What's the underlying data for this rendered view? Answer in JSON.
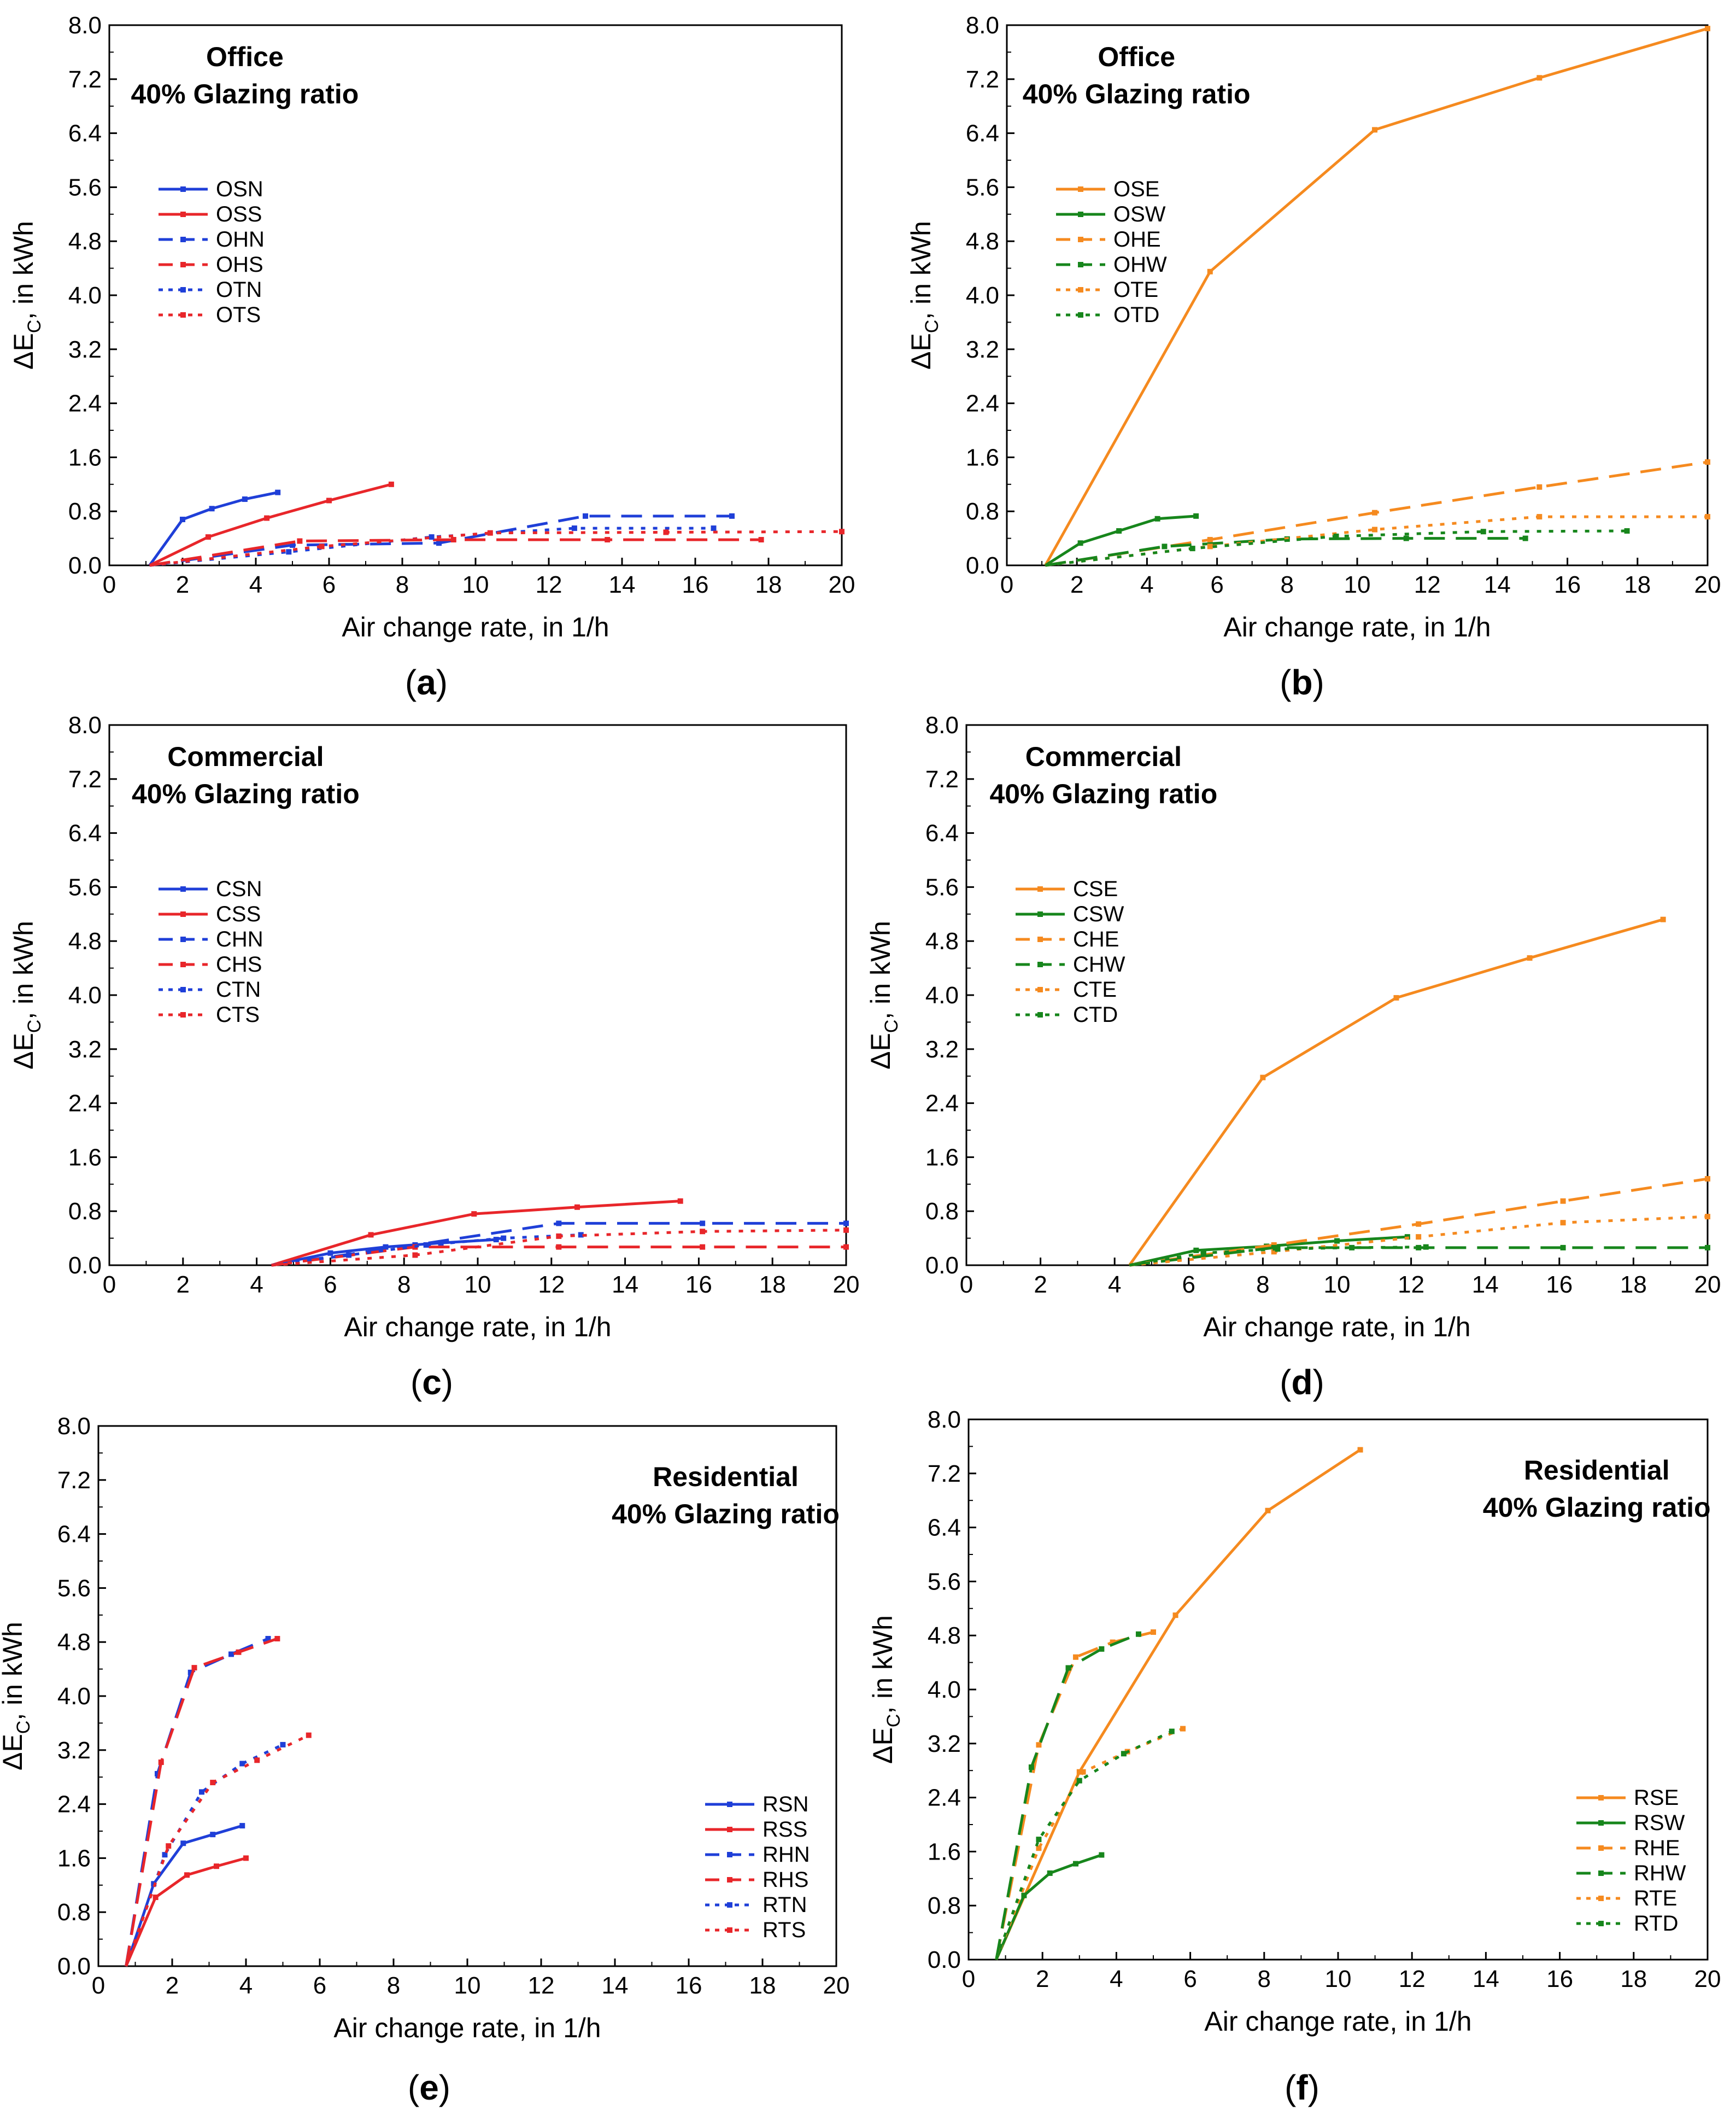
{
  "figure": {
    "panel_labels": [
      "(a)",
      "(b)",
      "(c)",
      "(d)",
      "(e)",
      "(f)"
    ]
  },
  "colors": {
    "blue": "#1f3fd8",
    "red": "#e8262a",
    "orange": "#f58a1f",
    "green": "#17861c",
    "axis": "#000000"
  },
  "chart_data": [
    {
      "type": "line",
      "panel": "(a)",
      "title": "Office",
      "subtitle": "40% Glazing ratio",
      "xlabel": "Air change rate, in 1/h",
      "ylabel": "ΔE",
      "ylabel_sub": "C",
      "ylabel_tail": ", in kWh",
      "xlim": [
        0,
        20
      ],
      "ylim": [
        0,
        8
      ],
      "x_ticks": [
        "0",
        "2",
        "4",
        "6",
        "8",
        "10",
        "12",
        "14",
        "16",
        "18",
        "20"
      ],
      "y_ticks": [
        "0.0",
        "0.8",
        "1.6",
        "2.4",
        "3.2",
        "4.0",
        "4.8",
        "5.6",
        "6.4",
        "7.2",
        "8.0"
      ],
      "legend_position": "upper-left",
      "series": [
        {
          "name": "OSN",
          "color": "blue",
          "dash": "solid",
          "x": [
            1.1,
            2.0,
            2.8,
            3.7,
            4.6
          ],
          "y": [
            0,
            0.68,
            0.84,
            0.98,
            1.08
          ]
        },
        {
          "name": "OSS",
          "color": "red",
          "dash": "solid",
          "x": [
            1.1,
            2.7,
            4.3,
            6.0,
            7.7
          ],
          "y": [
            0,
            0.42,
            0.7,
            0.96,
            1.2
          ]
        },
        {
          "name": "OHN",
          "color": "blue",
          "dash": "dash",
          "x": [
            1.1,
            5.0,
            9.0,
            13.0,
            17.0
          ],
          "y": [
            0,
            0.3,
            0.33,
            0.73,
            0.73
          ]
        },
        {
          "name": "OHS",
          "color": "red",
          "dash": "dash",
          "x": [
            1.1,
            5.2,
            9.4,
            13.6,
            17.8
          ],
          "y": [
            0,
            0.36,
            0.38,
            0.38,
            0.38
          ]
        },
        {
          "name": "OTN",
          "color": "blue",
          "dash": "dot",
          "x": [
            1.1,
            4.9,
            8.8,
            12.7,
            16.5
          ],
          "y": [
            0,
            0.2,
            0.42,
            0.55,
            0.55
          ]
        },
        {
          "name": "OTS",
          "color": "red",
          "dash": "dot",
          "x": [
            1.1,
            5.8,
            10.4,
            15.2,
            20.0
          ],
          "y": [
            0,
            0.28,
            0.48,
            0.49,
            0.5
          ]
        }
      ]
    },
    {
      "type": "line",
      "panel": "(b)",
      "title": "Office",
      "subtitle": "40% Glazing ratio",
      "xlabel": "Air change rate, in 1/h",
      "ylabel": "ΔE",
      "ylabel_sub": "C",
      "ylabel_tail": ", in kWh",
      "xlim": [
        0,
        20
      ],
      "ylim": [
        0,
        8
      ],
      "x_ticks": [
        "0",
        "2",
        "4",
        "6",
        "8",
        "10",
        "12",
        "14",
        "16",
        "18",
        "20"
      ],
      "y_ticks": [
        "0.0",
        "0.8",
        "1.6",
        "2.4",
        "3.2",
        "4.0",
        "4.8",
        "5.6",
        "6.4",
        "7.2",
        "8.0"
      ],
      "legend_position": "upper-left",
      "series": [
        {
          "name": "OSE",
          "color": "orange",
          "dash": "solid",
          "x": [
            1.1,
            5.8,
            10.5,
            15.2,
            20.0
          ],
          "y": [
            0,
            4.35,
            6.45,
            7.22,
            7.95
          ]
        },
        {
          "name": "OSW",
          "color": "green",
          "dash": "solid",
          "x": [
            1.1,
            2.1,
            3.2,
            4.3,
            5.4
          ],
          "y": [
            0,
            0.33,
            0.51,
            0.69,
            0.73
          ]
        },
        {
          "name": "OHE",
          "color": "orange",
          "dash": "dash",
          "x": [
            1.1,
            5.8,
            10.5,
            15.2,
            20.0
          ],
          "y": [
            0,
            0.38,
            0.78,
            1.16,
            1.53
          ]
        },
        {
          "name": "OHW",
          "color": "green",
          "dash": "dash",
          "x": [
            1.1,
            4.5,
            8.0,
            11.4,
            14.8
          ],
          "y": [
            0,
            0.28,
            0.39,
            0.4,
            0.4
          ]
        },
        {
          "name": "OTE",
          "color": "orange",
          "dash": "dot",
          "x": [
            1.1,
            5.8,
            10.5,
            15.2,
            20.0
          ],
          "y": [
            0,
            0.28,
            0.53,
            0.72,
            0.72
          ]
        },
        {
          "name": "OTD",
          "color": "green",
          "dash": "dot",
          "x": [
            1.1,
            5.3,
            9.4,
            13.6,
            17.7
          ],
          "y": [
            0,
            0.25,
            0.43,
            0.5,
            0.51
          ]
        }
      ]
    },
    {
      "type": "line",
      "panel": "(c)",
      "title": "Commercial",
      "subtitle": "40% Glazing ratio",
      "xlabel": "Air change rate, in 1/h",
      "ylabel": "ΔE",
      "ylabel_sub": "C",
      "ylabel_tail": ", in kWh",
      "xlim": [
        0,
        20
      ],
      "ylim": [
        0,
        8
      ],
      "x_ticks": [
        "0",
        "2",
        "4",
        "6",
        "8",
        "10",
        "12",
        "14",
        "16",
        "18",
        "20"
      ],
      "y_ticks": [
        "0.0",
        "0.8",
        "1.6",
        "2.4",
        "3.2",
        "4.0",
        "4.8",
        "5.6",
        "6.4",
        "7.2",
        "8.0"
      ],
      "legend_position": "upper-left",
      "series": [
        {
          "name": "CSN",
          "color": "blue",
          "dash": "solid",
          "x": [
            4.4,
            6.0,
            7.5,
            9.0,
            10.5
          ],
          "y": [
            0,
            0.18,
            0.27,
            0.33,
            0.38
          ]
        },
        {
          "name": "CSS",
          "color": "red",
          "dash": "solid",
          "x": [
            4.4,
            7.1,
            9.9,
            12.7,
            15.5
          ],
          "y": [
            0,
            0.45,
            0.76,
            0.86,
            0.95
          ]
        },
        {
          "name": "CHN",
          "color": "blue",
          "dash": "dash",
          "x": [
            4.4,
            8.3,
            12.2,
            16.1,
            20.0
          ],
          "y": [
            0,
            0.3,
            0.62,
            0.62,
            0.62
          ]
        },
        {
          "name": "CHS",
          "color": "red",
          "dash": "dash",
          "x": [
            4.4,
            8.3,
            12.2,
            16.1,
            20.0
          ],
          "y": [
            0,
            0.27,
            0.27,
            0.27,
            0.27
          ]
        },
        {
          "name": "CTN",
          "color": "blue",
          "dash": "dot",
          "x": [
            4.4,
            6.5,
            8.6,
            10.7,
            12.8
          ],
          "y": [
            0,
            0.15,
            0.3,
            0.4,
            0.45
          ]
        },
        {
          "name": "CTS",
          "color": "red",
          "dash": "dot",
          "x": [
            4.4,
            8.3,
            12.2,
            16.1,
            20.0
          ],
          "y": [
            0,
            0.15,
            0.43,
            0.5,
            0.52
          ]
        }
      ]
    },
    {
      "type": "line",
      "panel": "(d)",
      "title": "Commercial",
      "subtitle": "40% Glazing ratio",
      "xlabel": "Air change rate, in 1/h",
      "ylabel": "ΔE",
      "ylabel_sub": "C",
      "ylabel_tail": ", in kWh",
      "xlim": [
        0,
        20
      ],
      "ylim": [
        0,
        8
      ],
      "x_ticks": [
        "0",
        "2",
        "4",
        "6",
        "8",
        "10",
        "12",
        "14",
        "16",
        "18",
        "20"
      ],
      "y_ticks": [
        "0.0",
        "0.8",
        "1.6",
        "2.4",
        "3.2",
        "4.0",
        "4.8",
        "5.6",
        "6.4",
        "7.2",
        "8.0"
      ],
      "legend_position": "upper-left",
      "series": [
        {
          "name": "CSE",
          "color": "orange",
          "dash": "solid",
          "x": [
            4.4,
            8.0,
            11.6,
            15.2,
            18.8
          ],
          "y": [
            0,
            2.78,
            3.96,
            4.55,
            5.12
          ]
        },
        {
          "name": "CSW",
          "color": "green",
          "dash": "solid",
          "x": [
            4.4,
            6.2,
            8.1,
            10.0,
            11.9
          ],
          "y": [
            0,
            0.22,
            0.28,
            0.36,
            0.42
          ]
        },
        {
          "name": "CHE",
          "color": "orange",
          "dash": "dash",
          "x": [
            4.4,
            8.3,
            12.2,
            16.1,
            20.0
          ],
          "y": [
            0,
            0.3,
            0.61,
            0.95,
            1.28
          ]
        },
        {
          "name": "CHW",
          "color": "green",
          "dash": "dash",
          "x": [
            4.4,
            8.3,
            12.2,
            16.1,
            20.0
          ],
          "y": [
            0,
            0.26,
            0.26,
            0.26,
            0.26
          ]
        },
        {
          "name": "CTE",
          "color": "orange",
          "dash": "dot",
          "x": [
            4.4,
            8.3,
            12.2,
            16.1,
            20.0
          ],
          "y": [
            0,
            0.2,
            0.42,
            0.63,
            0.72
          ]
        },
        {
          "name": "CTD",
          "color": "green",
          "dash": "dot",
          "x": [
            4.4,
            6.4,
            8.4,
            10.4,
            12.4
          ],
          "y": [
            0,
            0.18,
            0.24,
            0.26,
            0.27
          ]
        }
      ]
    },
    {
      "type": "line",
      "panel": "(e)",
      "title": "Residential",
      "subtitle": "40% Glazing ratio",
      "xlabel": "Air change rate, in 1/h",
      "ylabel": "ΔE",
      "ylabel_sub": "C",
      "ylabel_tail": ", in kWh",
      "xlim": [
        0,
        20
      ],
      "ylim": [
        0,
        8
      ],
      "x_ticks": [
        "0",
        "2",
        "4",
        "6",
        "8",
        "10",
        "12",
        "14",
        "16",
        "18",
        "20"
      ],
      "y_ticks": [
        "0.0",
        "0.8",
        "1.6",
        "2.4",
        "3.2",
        "4.0",
        "4.8",
        "5.6",
        "6.4",
        "7.2",
        "8.0"
      ],
      "legend_position": "lower-right",
      "series": [
        {
          "name": "RSN",
          "color": "blue",
          "dash": "solid",
          "x": [
            0.75,
            1.5,
            2.3,
            3.1,
            3.9
          ],
          "y": [
            0,
            1.22,
            1.82,
            1.95,
            2.08
          ]
        },
        {
          "name": "RSS",
          "color": "red",
          "dash": "solid",
          "x": [
            0.75,
            1.55,
            2.4,
            3.2,
            4.0
          ],
          "y": [
            0,
            1.02,
            1.35,
            1.48,
            1.6
          ]
        },
        {
          "name": "RHN",
          "color": "blue",
          "dash": "dash",
          "x": [
            0.75,
            1.6,
            2.5,
            3.6,
            4.6
          ],
          "y": [
            0,
            2.85,
            4.35,
            4.62,
            4.85
          ]
        },
        {
          "name": "RHS",
          "color": "red",
          "dash": "dash",
          "x": [
            0.75,
            1.7,
            2.6,
            3.8,
            4.85
          ],
          "y": [
            0,
            3.02,
            4.42,
            4.65,
            4.85
          ]
        },
        {
          "name": "RTN",
          "color": "blue",
          "dash": "dot",
          "x": [
            0.75,
            1.8,
            2.8,
            3.9,
            5.0
          ],
          "y": [
            0,
            1.65,
            2.58,
            3.0,
            3.28
          ]
        },
        {
          "name": "RTS",
          "color": "red",
          "dash": "dot",
          "x": [
            0.75,
            1.9,
            3.1,
            4.3,
            5.7
          ],
          "y": [
            0,
            1.78,
            2.72,
            3.05,
            3.42
          ]
        }
      ]
    },
    {
      "type": "line",
      "panel": "(f)",
      "title": "Residential",
      "subtitle": "40% Glazing ratio",
      "xlabel": "Air change rate, in 1/h",
      "ylabel": "ΔE",
      "ylabel_sub": "C",
      "ylabel_tail": ", in kWh",
      "xlim": [
        0,
        20
      ],
      "ylim": [
        0,
        8
      ],
      "x_ticks": [
        "0",
        "2",
        "4",
        "6",
        "8",
        "10",
        "12",
        "14",
        "16",
        "18",
        "20"
      ],
      "y_ticks": [
        "0.0",
        "0.8",
        "1.6",
        "2.4",
        "3.2",
        "4.0",
        "4.8",
        "5.6",
        "6.4",
        "7.2",
        "8.0"
      ],
      "legend_position": "lower-right",
      "series": [
        {
          "name": "RSE",
          "color": "orange",
          "dash": "solid",
          "x": [
            0.75,
            3.0,
            5.6,
            8.1,
            10.6
          ],
          "y": [
            0,
            2.78,
            5.1,
            6.65,
            7.55
          ]
        },
        {
          "name": "RSW",
          "color": "green",
          "dash": "solid",
          "x": [
            0.75,
            1.5,
            2.2,
            2.9,
            3.6
          ],
          "y": [
            0,
            0.95,
            1.28,
            1.42,
            1.55
          ]
        },
        {
          "name": "RHE",
          "color": "orange",
          "dash": "dash",
          "x": [
            0.75,
            1.9,
            2.9,
            3.9,
            5.0
          ],
          "y": [
            0,
            3.18,
            4.48,
            4.7,
            4.85
          ]
        },
        {
          "name": "RHW",
          "color": "green",
          "dash": "dash",
          "x": [
            0.75,
            1.7,
            2.7,
            3.6,
            4.6
          ],
          "y": [
            0,
            2.85,
            4.32,
            4.6,
            4.82
          ]
        },
        {
          "name": "RTE",
          "color": "orange",
          "dash": "dot",
          "x": [
            0.75,
            1.9,
            3.1,
            4.3,
            5.8
          ],
          "y": [
            0,
            1.65,
            2.78,
            3.08,
            3.42
          ]
        },
        {
          "name": "RTD",
          "color": "green",
          "dash": "dot",
          "x": [
            0.75,
            1.9,
            3.0,
            4.2,
            5.5
          ],
          "y": [
            0,
            1.78,
            2.65,
            3.05,
            3.38
          ]
        }
      ]
    }
  ]
}
